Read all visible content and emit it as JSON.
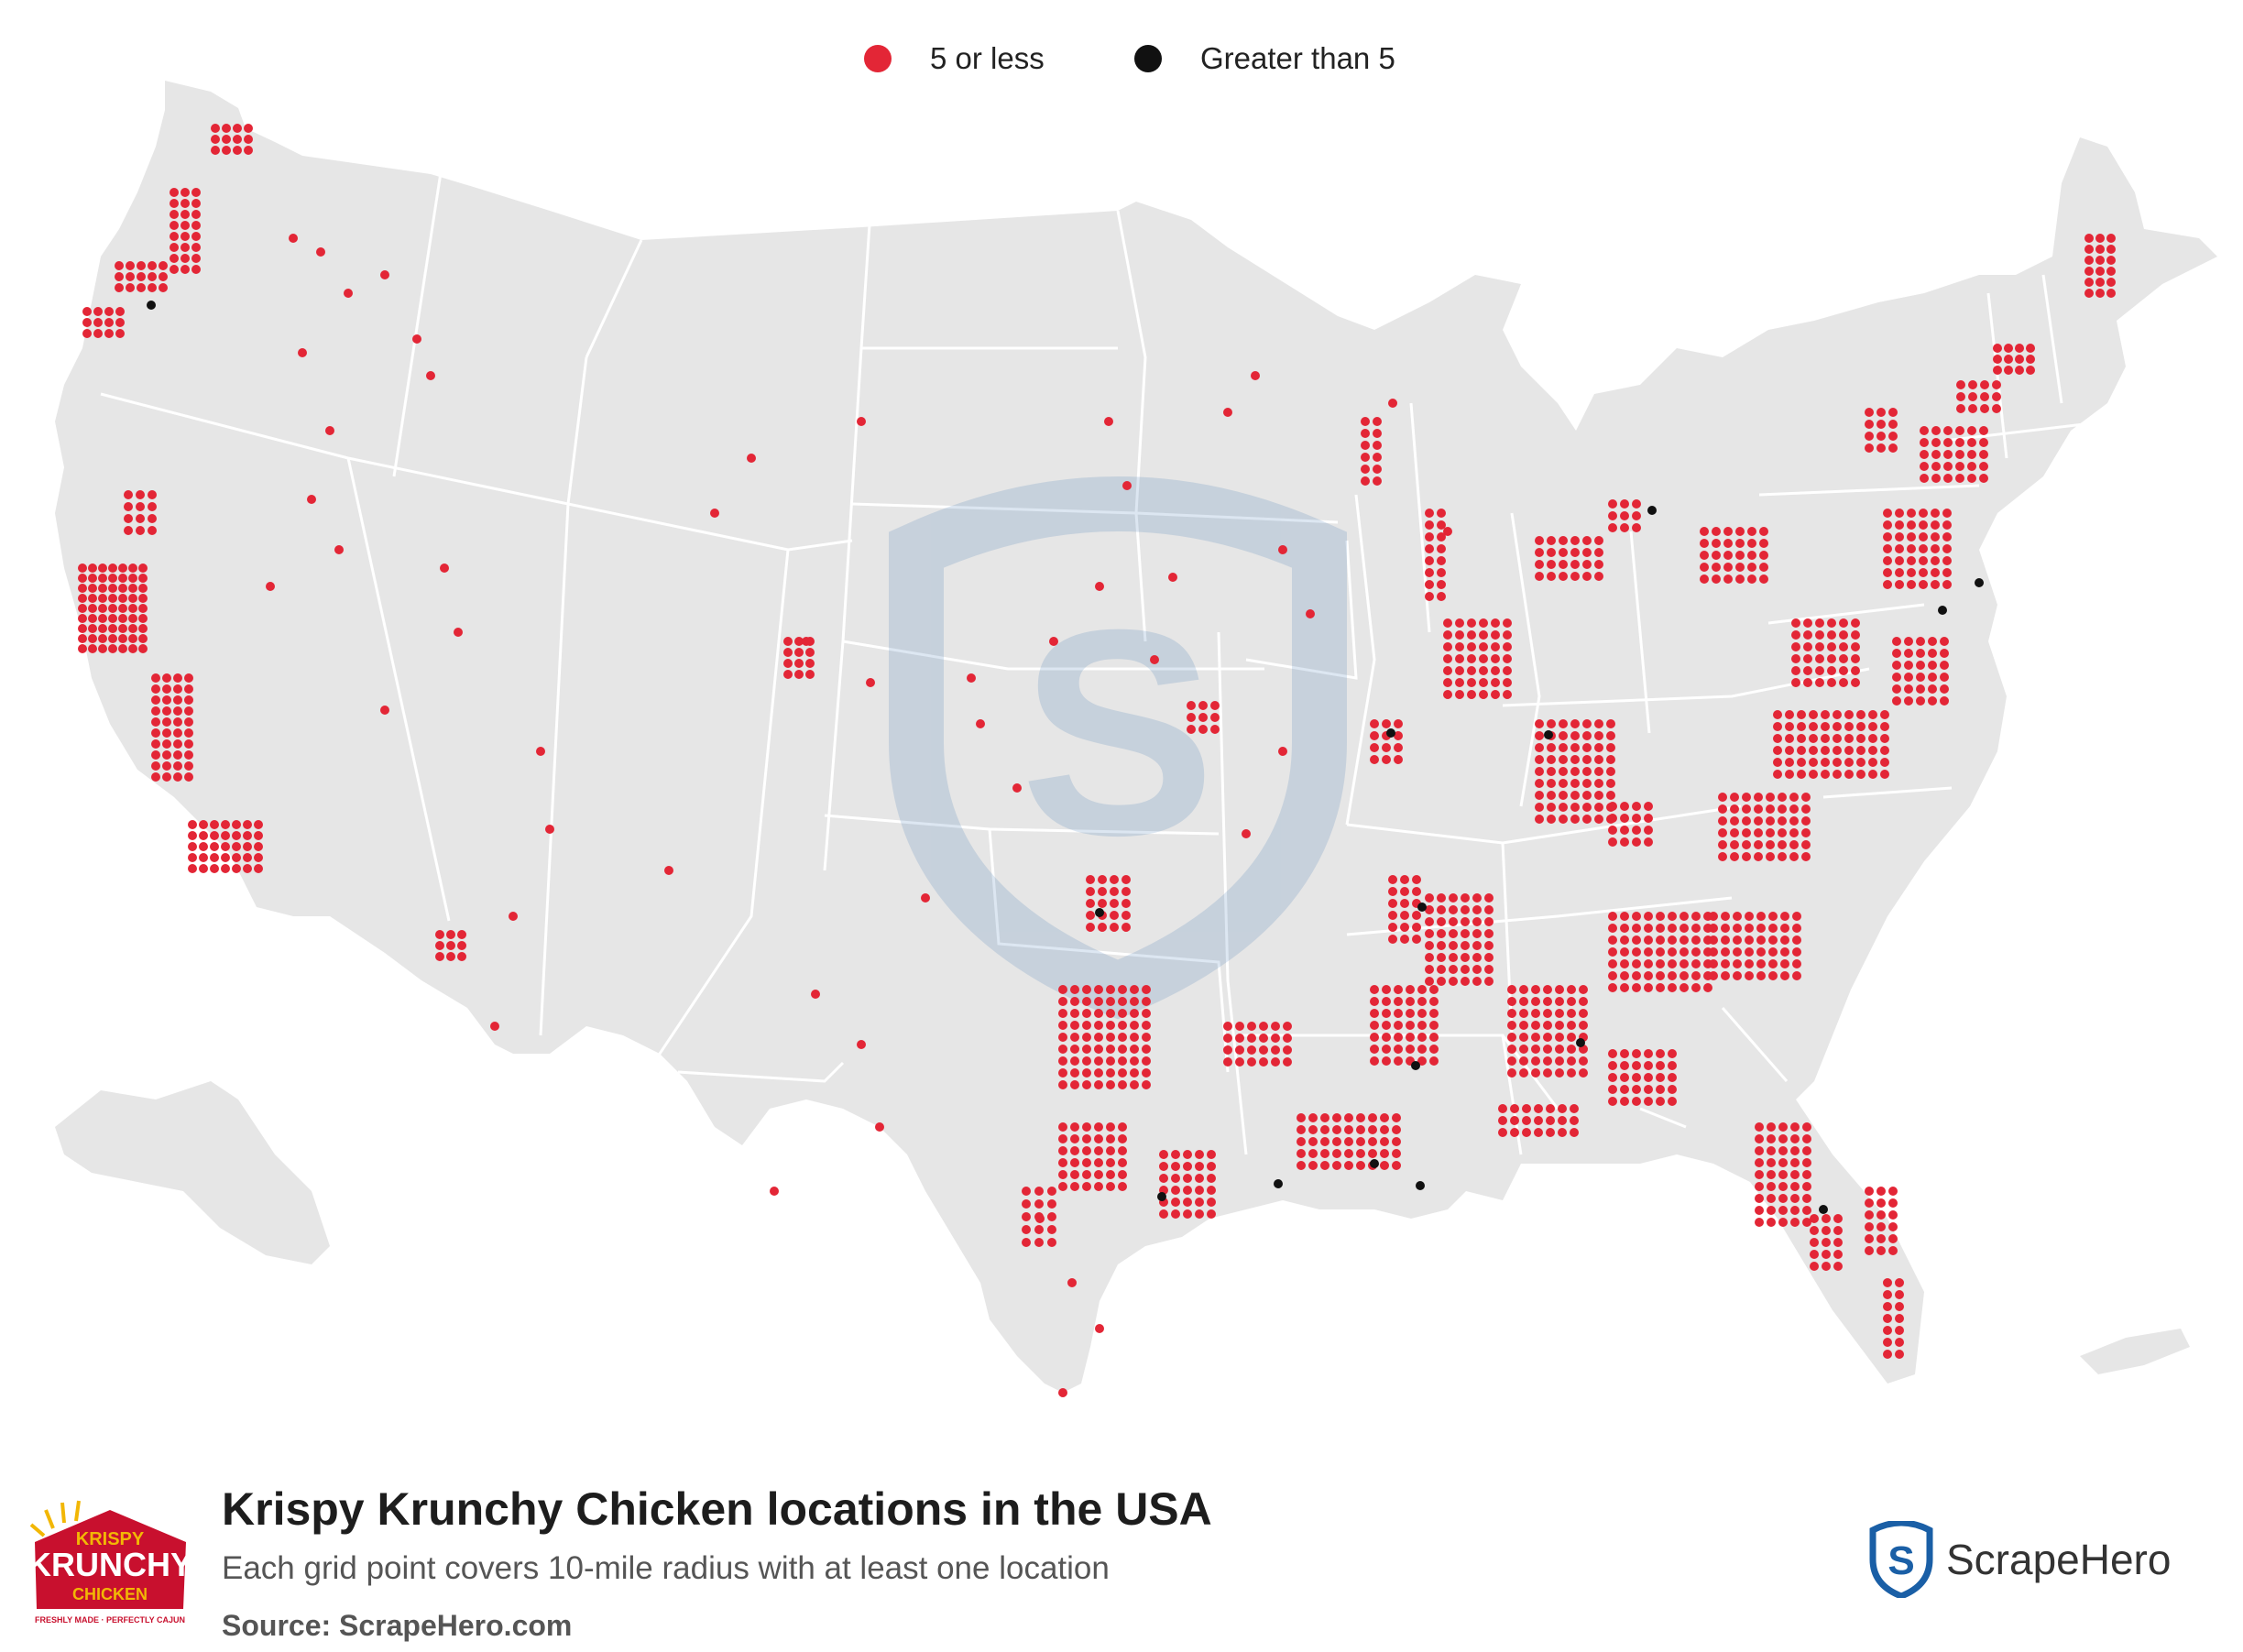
{
  "legend": [
    {
      "label": "5 or less",
      "color": "#e32636"
    },
    {
      "label": "Greater than 5",
      "color": "#111111"
    }
  ],
  "title": "Krispy Krunchy Chicken locations in the USA",
  "subtitle": "Each grid point covers 10-mile radius with at least one location",
  "source": "Source: ScrapeHero.com",
  "brand": {
    "name": "ScrapeHero",
    "color": "#1a5fa6"
  },
  "logo": {
    "line1": "KRISPY",
    "line2": "KRUNCHY",
    "line3": "CHICKEN",
    "tagline": "FRESHLY MADE · PERFECTLY CAJUN",
    "color": "#c8102e"
  },
  "map": {
    "land_color": "#e6e6e6",
    "border_color": "#ffffff",
    "point_color": "#e32636",
    "high_color": "#111111",
    "watermark_icon": "shield-s-icon"
  }
}
